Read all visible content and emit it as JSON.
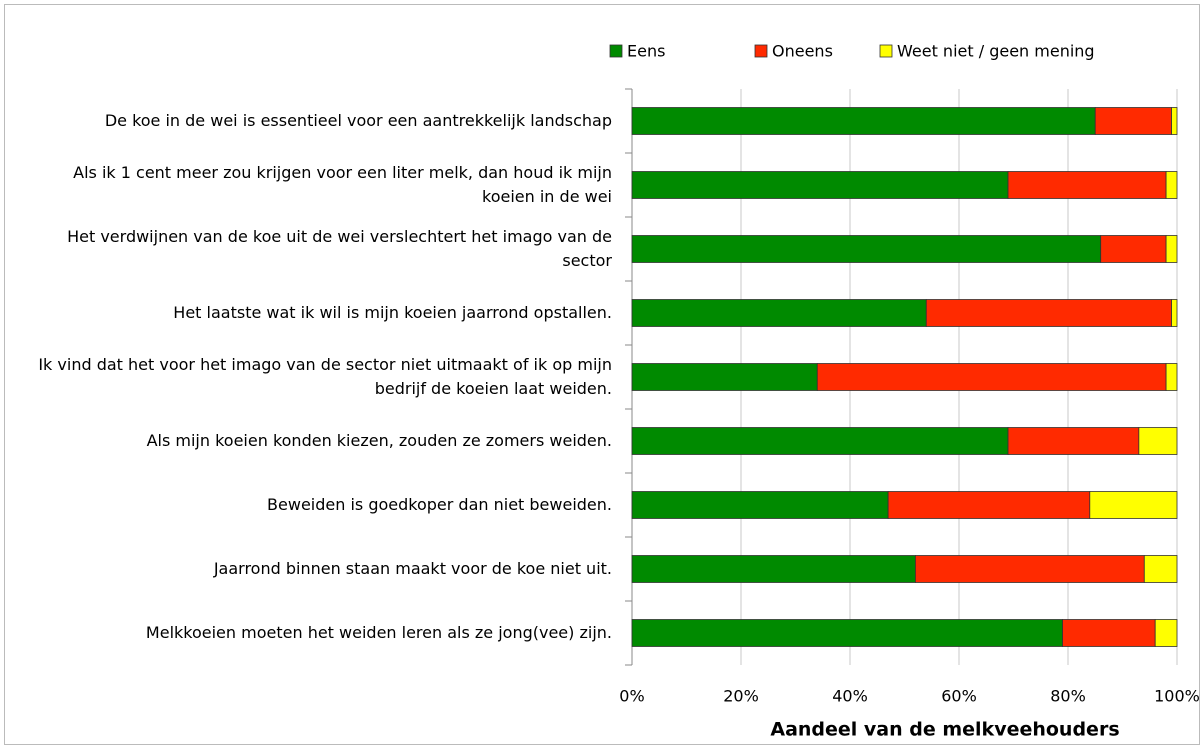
{
  "chart_data": {
    "type": "stacked_barh",
    "categories": [
      "De koe in de wei is essentieel voor een aantrekkelijk landschap",
      "Als ik 1 cent meer zou krijgen voor een liter melk, dan houd ik mijn koeien in de wei",
      "Het verdwijnen van de koe uit de wei verslechtert het imago van de sector",
      "Het laatste wat ik wil is mijn koeien jaarrond opstallen.",
      "Ik vind dat het voor het imago van de sector niet uitmaakt of ik op mijn bedrijf de koeien laat weiden.",
      "Als mijn koeien konden kiezen, zouden ze zomers weiden.",
      "Beweiden is goedkoper dan niet beweiden.",
      "Jaarrond binnen staan maakt voor de koe niet uit.",
      "Melkkoeien moeten het weiden leren als ze jong(vee) zijn."
    ],
    "series": [
      {
        "name": "Eens",
        "color": "#008a00",
        "values": [
          85,
          69,
          86,
          54,
          34,
          69,
          47,
          52,
          79
        ]
      },
      {
        "name": "Oneens",
        "color": "#ff2a00",
        "values": [
          14,
          29,
          12,
          45,
          64,
          24,
          37,
          42,
          17
        ]
      },
      {
        "name": "Weet niet / geen mening",
        "color": "#ffff00",
        "values": [
          1,
          2,
          2,
          1,
          2,
          7,
          16,
          6,
          4
        ]
      }
    ],
    "xlim": [
      0,
      100
    ],
    "xticks": [
      {
        "value": 0,
        "label": "0%"
      },
      {
        "value": 20,
        "label": "20%"
      },
      {
        "value": 40,
        "label": "40%"
      },
      {
        "value": 60,
        "label": "60%"
      },
      {
        "value": 80,
        "label": "80%"
      },
      {
        "value": 100,
        "label": "100%"
      }
    ],
    "xlabel": "Aandeel van de melkveehouders",
    "grid": true,
    "legend": "top"
  }
}
